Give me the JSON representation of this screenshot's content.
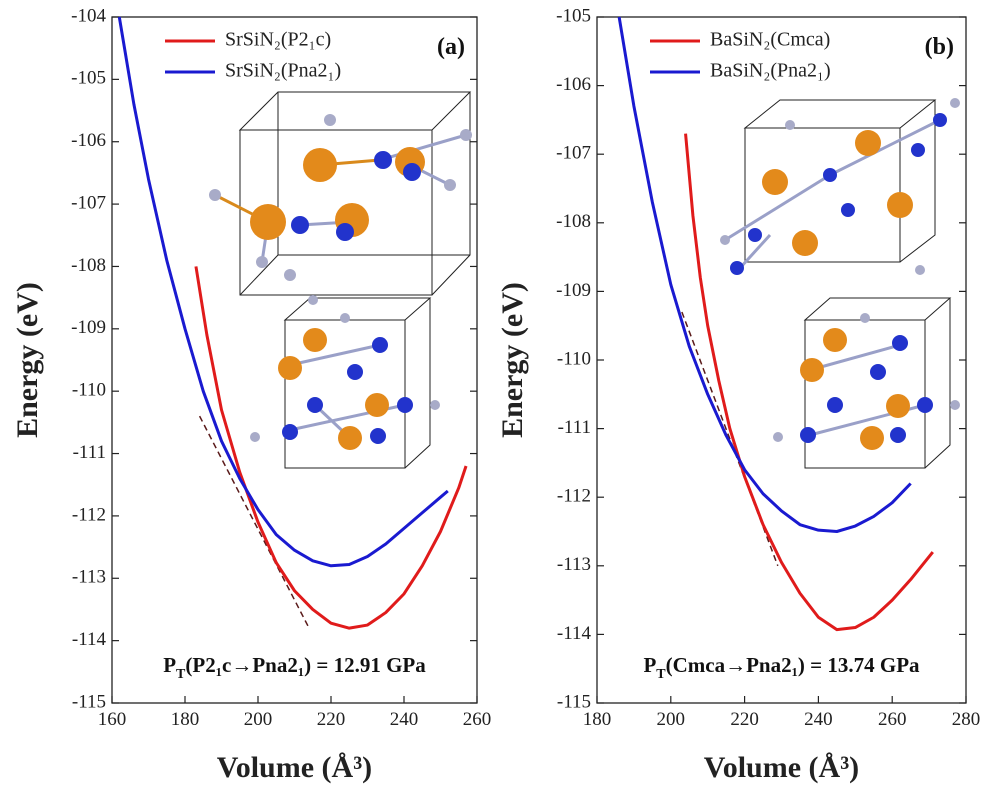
{
  "chart_data": [
    {
      "type": "line",
      "panel_label": "(a)",
      "xlabel": "Volume (Å³)",
      "ylabel": "Energy (eV)",
      "xlim": [
        160,
        260
      ],
      "ylim": [
        -115,
        -104
      ],
      "xticks": [
        160,
        180,
        200,
        220,
        240,
        260
      ],
      "yticks": [
        -115,
        -114,
        -113,
        -112,
        -111,
        -110,
        -109,
        -108,
        -107,
        -106,
        -105,
        -104
      ],
      "series": [
        {
          "name": "SrSiN₂(P2₁c)",
          "color": "#e01b1b",
          "x": [
            183,
            186,
            190,
            195,
            200,
            205,
            210,
            215,
            220,
            225,
            230,
            235,
            240,
            245,
            250,
            255,
            257
          ],
          "values": [
            -108.0,
            -109.1,
            -110.3,
            -111.3,
            -112.1,
            -112.75,
            -113.2,
            -113.5,
            -113.72,
            -113.8,
            -113.75,
            -113.55,
            -113.25,
            -112.8,
            -112.25,
            -111.55,
            -111.2
          ]
        },
        {
          "name": "SrSiN₂(Pna2₁)",
          "color": "#1a1ad0",
          "x": [
            162,
            166,
            170,
            175,
            180,
            185,
            190,
            195,
            200,
            205,
            210,
            215,
            220,
            225,
            230,
            235,
            240,
            245,
            250,
            252
          ],
          "values": [
            -104.0,
            -105.4,
            -106.6,
            -107.9,
            -109.0,
            -110.0,
            -110.8,
            -111.4,
            -111.9,
            -112.3,
            -112.55,
            -112.72,
            -112.8,
            -112.78,
            -112.65,
            -112.45,
            -112.2,
            -111.95,
            -111.7,
            -111.6
          ]
        }
      ],
      "tangent": {
        "x": [
          184,
          214
        ],
        "values": [
          -110.4,
          -113.8
        ],
        "color": "#5a1a1a"
      },
      "annotation": {
        "main": "P",
        "sub": "T",
        "rest": "(P2₁c→Pna2₁) = 12.91 GPa"
      }
    },
    {
      "type": "line",
      "panel_label": "(b)",
      "xlabel": "Volume (Å³)",
      "ylabel": "Energy (eV)",
      "xlim": [
        180,
        280
      ],
      "ylim": [
        -115,
        -105
      ],
      "xticks": [
        180,
        200,
        220,
        240,
        260,
        280
      ],
      "yticks": [
        -115,
        -114,
        -113,
        -112,
        -111,
        -110,
        -109,
        -108,
        -107,
        -106,
        -105
      ],
      "series": [
        {
          "name": "BaSiN₂(Cmca)",
          "color": "#e01b1b",
          "x": [
            204,
            206,
            208,
            210,
            213,
            216,
            220,
            225,
            230,
            235,
            240,
            245,
            250,
            255,
            260,
            265,
            271
          ],
          "values": [
            -106.7,
            -107.9,
            -108.8,
            -109.5,
            -110.3,
            -111.0,
            -111.7,
            -112.4,
            -112.95,
            -113.4,
            -113.75,
            -113.93,
            -113.9,
            -113.75,
            -113.5,
            -113.2,
            -112.8
          ]
        },
        {
          "name": "BaSiN₂(Pna2₁)",
          "color": "#1a1ad0",
          "x": [
            186,
            190,
            195,
            200,
            205,
            210,
            215,
            220,
            225,
            230,
            235,
            240,
            245,
            250,
            255,
            260,
            265
          ],
          "values": [
            -105.0,
            -106.3,
            -107.7,
            -108.9,
            -109.8,
            -110.5,
            -111.1,
            -111.6,
            -111.95,
            -112.2,
            -112.4,
            -112.48,
            -112.5,
            -112.42,
            -112.28,
            -112.08,
            -111.8
          ]
        }
      ],
      "tangent": {
        "x": [
          203,
          229
        ],
        "values": [
          -109.3,
          -113.0
        ],
        "color": "#5a1a1a"
      },
      "annotation": {
        "main": "P",
        "sub": "T",
        "rest": "(Cmca→Pna2₁) = 13.74 GPa"
      }
    }
  ]
}
